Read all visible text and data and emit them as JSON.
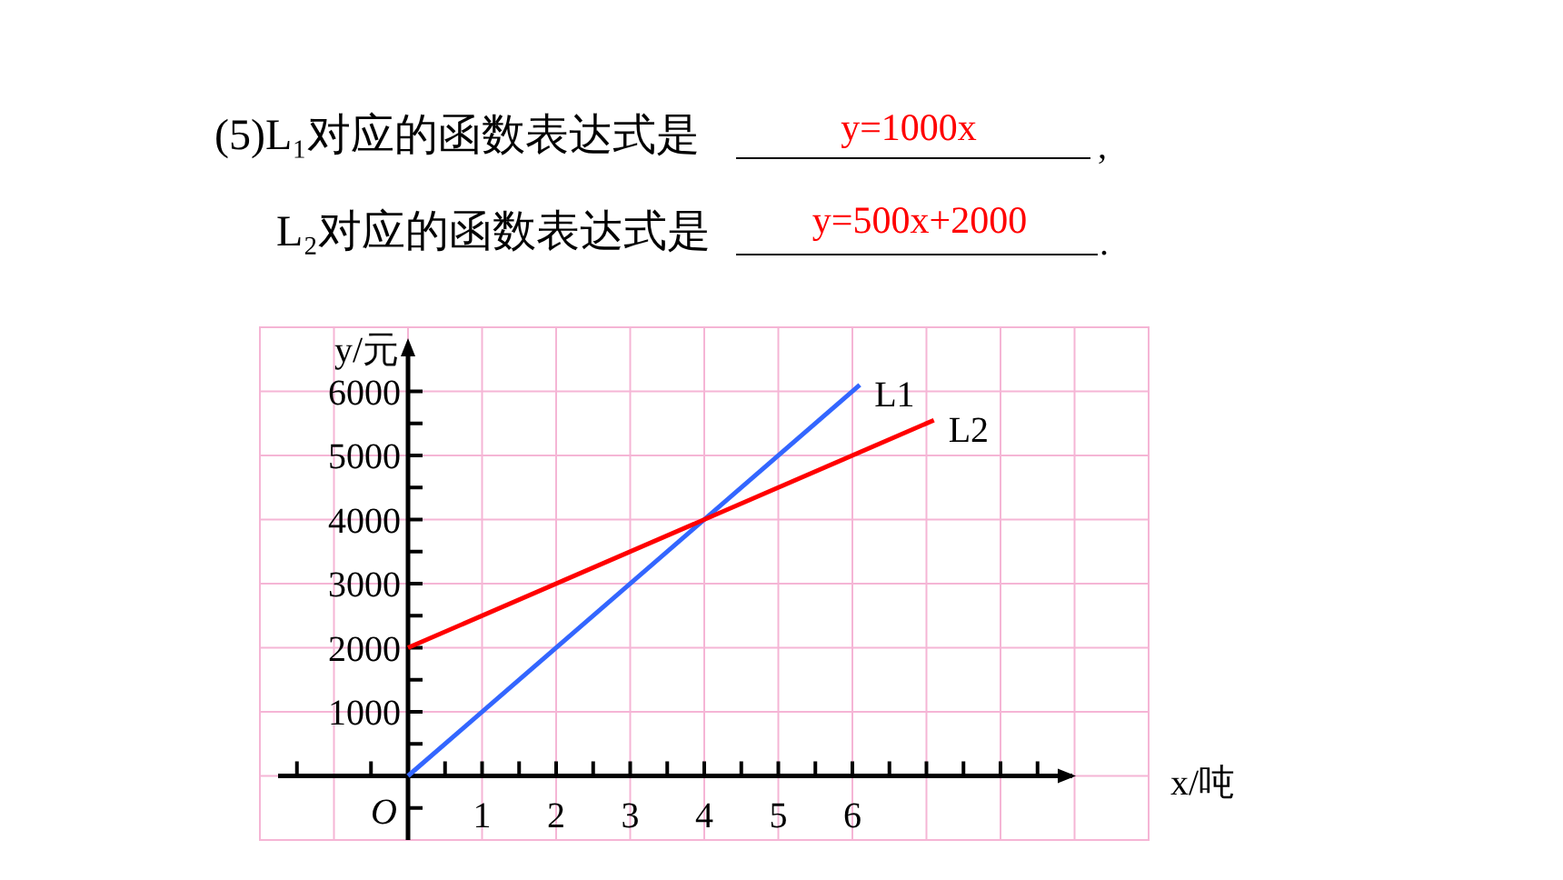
{
  "chart_data": {
    "type": "line",
    "title": "(5)L₁对应的函数表达式是",
    "subtitle": "L₂对应的函数表达式是",
    "annotations": [
      "y=1000x",
      ",",
      "y=500x+2000",
      ".",
      {
        "text": "O",
        "x": 0,
        "y": 0
      }
    ],
    "xlabel": "x/吨",
    "ylabel": "y/元",
    "series": [
      {
        "name": "L1",
        "color": "#3366ff",
        "x": [
          0,
          6.1
        ],
        "values": [
          0,
          6100
        ]
      },
      {
        "name": "L2",
        "color": "#ff0000",
        "x": [
          0,
          7.1
        ],
        "values": [
          2000,
          5550
        ]
      }
    ],
    "xlim": [
      -2,
      10
    ],
    "ylim": [
      -1000,
      7000
    ],
    "xticks": [
      {
        "value": -1.5,
        "label": null
      },
      {
        "value": -0.5,
        "label": null
      },
      {
        "value": 0.5,
        "label": null
      },
      1,
      {
        "value": 1.5,
        "label": null
      },
      2,
      {
        "value": 2.5,
        "label": null
      },
      3,
      {
        "value": 3.5,
        "label": null
      },
      4,
      {
        "value": 4.5,
        "label": null
      },
      5,
      {
        "value": 5.5,
        "label": null
      },
      6,
      {
        "value": 6.5,
        "label": null
      },
      {
        "value": 7,
        "label": null
      },
      {
        "value": 7.5,
        "label": null
      },
      {
        "value": 8,
        "label": null
      },
      {
        "value": 8.5,
        "label": null
      }
    ],
    "yticks": [
      {
        "value": -500,
        "label": null
      },
      {
        "value": 500,
        "label": null
      },
      1000,
      {
        "value": 1500,
        "label": null
      },
      2000,
      {
        "value": 2500,
        "label": null
      },
      3000,
      {
        "value": 3500,
        "label": null
      },
      4000,
      {
        "value": 4500,
        "label": null
      },
      5000,
      {
        "value": 5500,
        "label": null
      },
      6000
    ],
    "grid": true,
    "marker": "none",
    "line_style": "solid"
  }
}
